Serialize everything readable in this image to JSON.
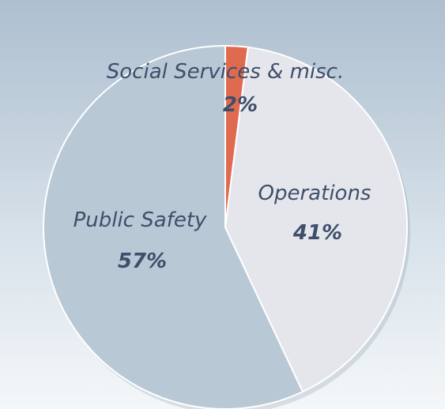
{
  "chart_data": {
    "type": "pie",
    "title": "",
    "slices": [
      {
        "label": "Social Services & misc.",
        "value": 2,
        "display": "2%",
        "color": "#e06a50"
      },
      {
        "label": "Operations",
        "value": 41,
        "display": "41%",
        "color": "#e4e6ec"
      },
      {
        "label": "Public Safety",
        "value": 57,
        "display": "57%",
        "color": "#b9c8d5"
      }
    ],
    "start_angle": "12 o'clock",
    "direction": "clockwise",
    "legend": "none",
    "label_color": "#3f4f6b",
    "background": [
      "#aebfd0",
      "#f4f7f9"
    ]
  }
}
